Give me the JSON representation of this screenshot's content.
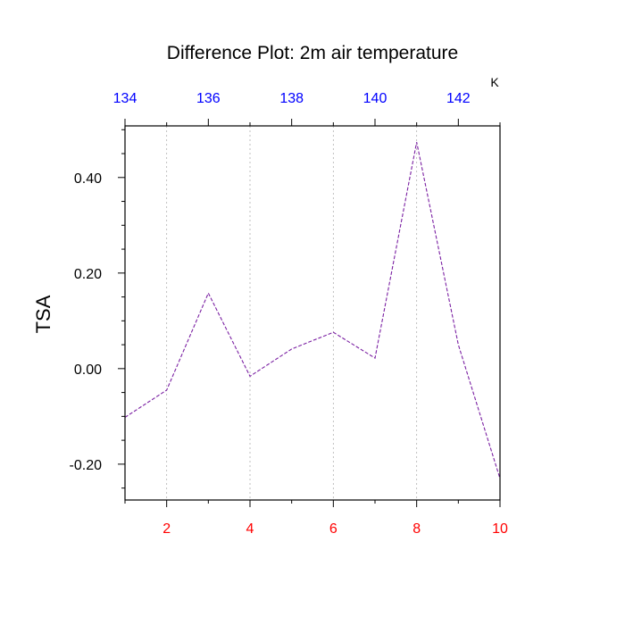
{
  "chart_data": {
    "type": "line",
    "title": "Difference Plot: 2m air temperature",
    "ylabel": "TSA",
    "units": "K",
    "x": [
      1,
      2,
      3,
      4,
      5,
      6,
      7,
      8,
      9,
      10
    ],
    "series": [
      {
        "values": [
          -0.102,
          -0.045,
          0.158,
          -0.016,
          0.041,
          0.076,
          0.022,
          0.474,
          0.05,
          -0.23
        ]
      }
    ],
    "xlim": [
      1,
      10
    ],
    "ylim": [
      -0.275,
      0.508
    ],
    "x_ticks": [
      2,
      4,
      6,
      8,
      10
    ],
    "y_ticks": [
      -0.2,
      0.0,
      0.2,
      0.4
    ],
    "y_tick_labels": [
      "-0.20",
      "0.00",
      "0.20",
      "0.40"
    ],
    "top_axis": {
      "xlim": [
        134,
        143
      ],
      "ticks": [
        134,
        136,
        138,
        140,
        142
      ]
    },
    "grid": "vertical-dashed",
    "colors": {
      "line": "#7a1fa2",
      "bottom_tick_labels": "#ff0000",
      "top_tick_labels": "#0000ff",
      "axes": "#000000",
      "grid": "#b0b0b0"
    }
  }
}
